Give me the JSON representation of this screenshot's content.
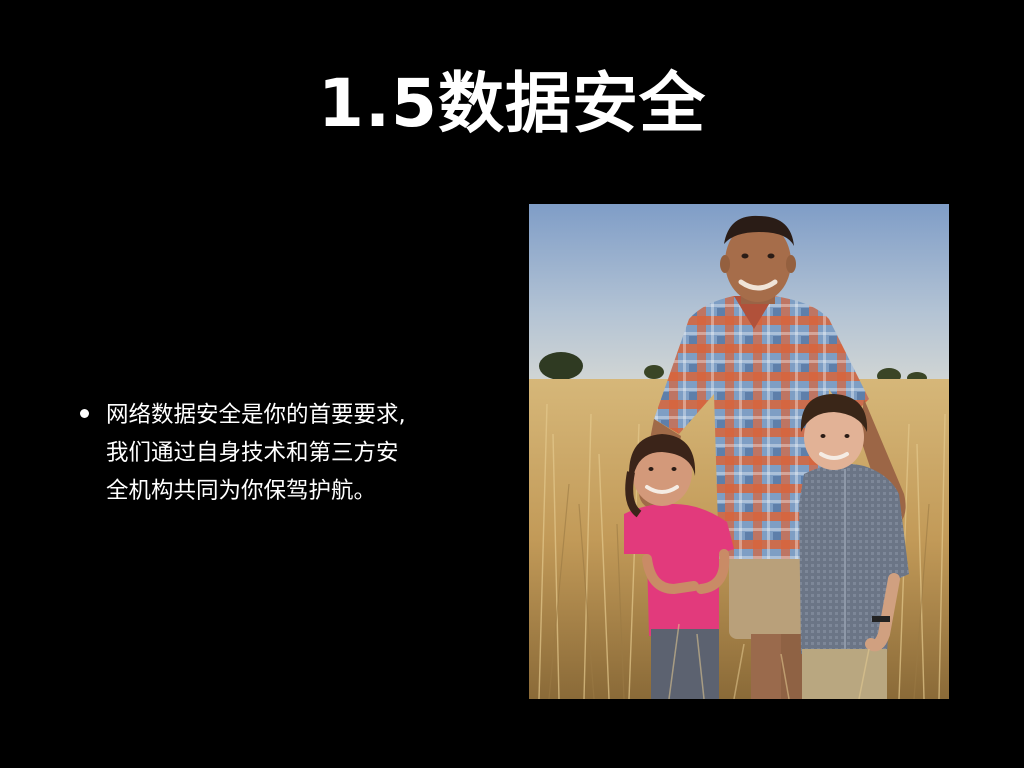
{
  "slide": {
    "title": "1.5数据安全",
    "bullet": {
      "lines": [
        "网络数据安全是你的首要要求,",
        "我们通过自身技术和第三方安",
        "全机构共同为你保驾护航。"
      ]
    }
  },
  "colors": {
    "background": "#000000",
    "text": "#ffffff",
    "sky_top": "#7f9dc7",
    "sky_bottom": "#c9d2d8",
    "grass": "#c9a766",
    "shirt_plaid_red": "#d9643a",
    "shirt_plaid_blue": "#7e9ec4",
    "girl_shirt": "#e23a7c",
    "boy_shirt": "#6b7586"
  }
}
